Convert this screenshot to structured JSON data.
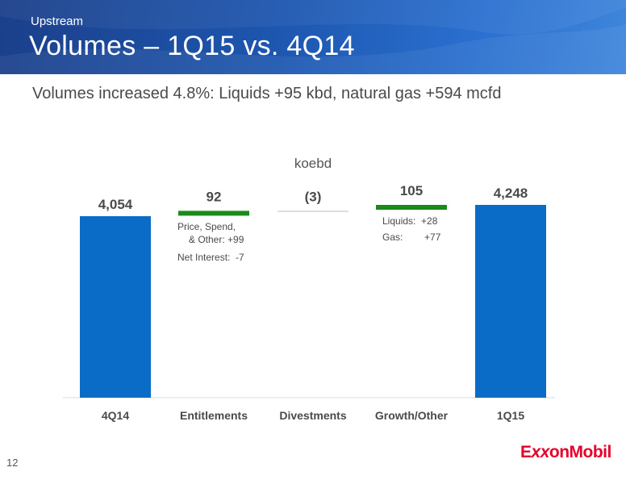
{
  "header": {
    "kicker": "Upstream",
    "title": "Volumes – 1Q15 vs. 4Q14",
    "subtitle": "Volumes increased 4.8%:  Liquids +95 kbd, natural gas +594 mcfd"
  },
  "colors": {
    "bar_blue": "#0a6cc7",
    "increase_green": "#1a8a1a",
    "decrease_gray": "#c8c8c8",
    "label_text": "#4a4a4a",
    "logo_red": "#e4002b"
  },
  "chart_data": {
    "type": "bar",
    "subtype": "waterfall",
    "unit_label": "koebd",
    "categories": [
      "4Q14",
      "Entitlements",
      "Divestments",
      "Growth/Other",
      "1Q15"
    ],
    "kinds": [
      "total",
      "delta",
      "delta",
      "delta",
      "total"
    ],
    "values": [
      4054,
      92,
      -3,
      105,
      4248
    ],
    "value_labels": [
      "4,054",
      "92",
      "(3)",
      "105",
      "4,248"
    ],
    "annotations": [
      {
        "category": "Entitlements",
        "lines": [
          "Price, Spend,",
          "& Other: +99",
          "Net Interest:  -7"
        ]
      },
      {
        "category": "Growth/Other",
        "lines": [
          "Liquids:  +28",
          "Gas:        +77"
        ]
      }
    ],
    "grid": false,
    "legend": "none"
  },
  "footer": {
    "page_number": "12",
    "logo_text_1": "E",
    "logo_text_xx": "xx",
    "logo_text_2": "onMobil"
  }
}
